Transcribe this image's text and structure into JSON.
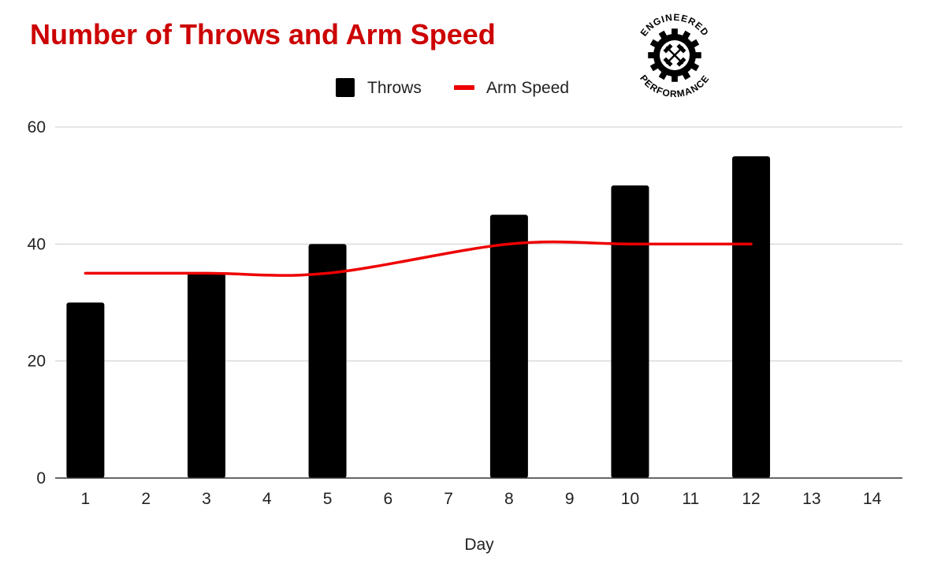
{
  "chart_data": {
    "type": "bar",
    "title": "Number of Throws and Arm Speed",
    "xlabel": "Day",
    "ylabel": "",
    "categories": [
      "1",
      "2",
      "3",
      "4",
      "5",
      "6",
      "7",
      "8",
      "9",
      "10",
      "11",
      "12",
      "13",
      "14"
    ],
    "ylim": [
      0,
      60
    ],
    "yticks": [
      0,
      20,
      40,
      60
    ],
    "grid": true,
    "legend_position": "top",
    "series": [
      {
        "name": "Throws",
        "type": "bar",
        "color": "#000000",
        "values": [
          30,
          null,
          35,
          null,
          40,
          null,
          null,
          45,
          null,
          50,
          null,
          55,
          null,
          null
        ]
      },
      {
        "name": "Arm Speed",
        "type": "line",
        "smooth": true,
        "color": "#ee0000",
        "values": [
          35,
          null,
          35,
          null,
          35,
          null,
          null,
          40,
          null,
          40,
          null,
          40,
          null,
          null
        ]
      }
    ],
    "colors": {
      "title": "#cc0000",
      "grid": "#cccccc",
      "axis": "#333333"
    }
  },
  "logo": {
    "text_top": "ENGINEERED",
    "text_bottom": "PERFORMANCE",
    "icon": "gear-crossed-barbells-icon"
  }
}
